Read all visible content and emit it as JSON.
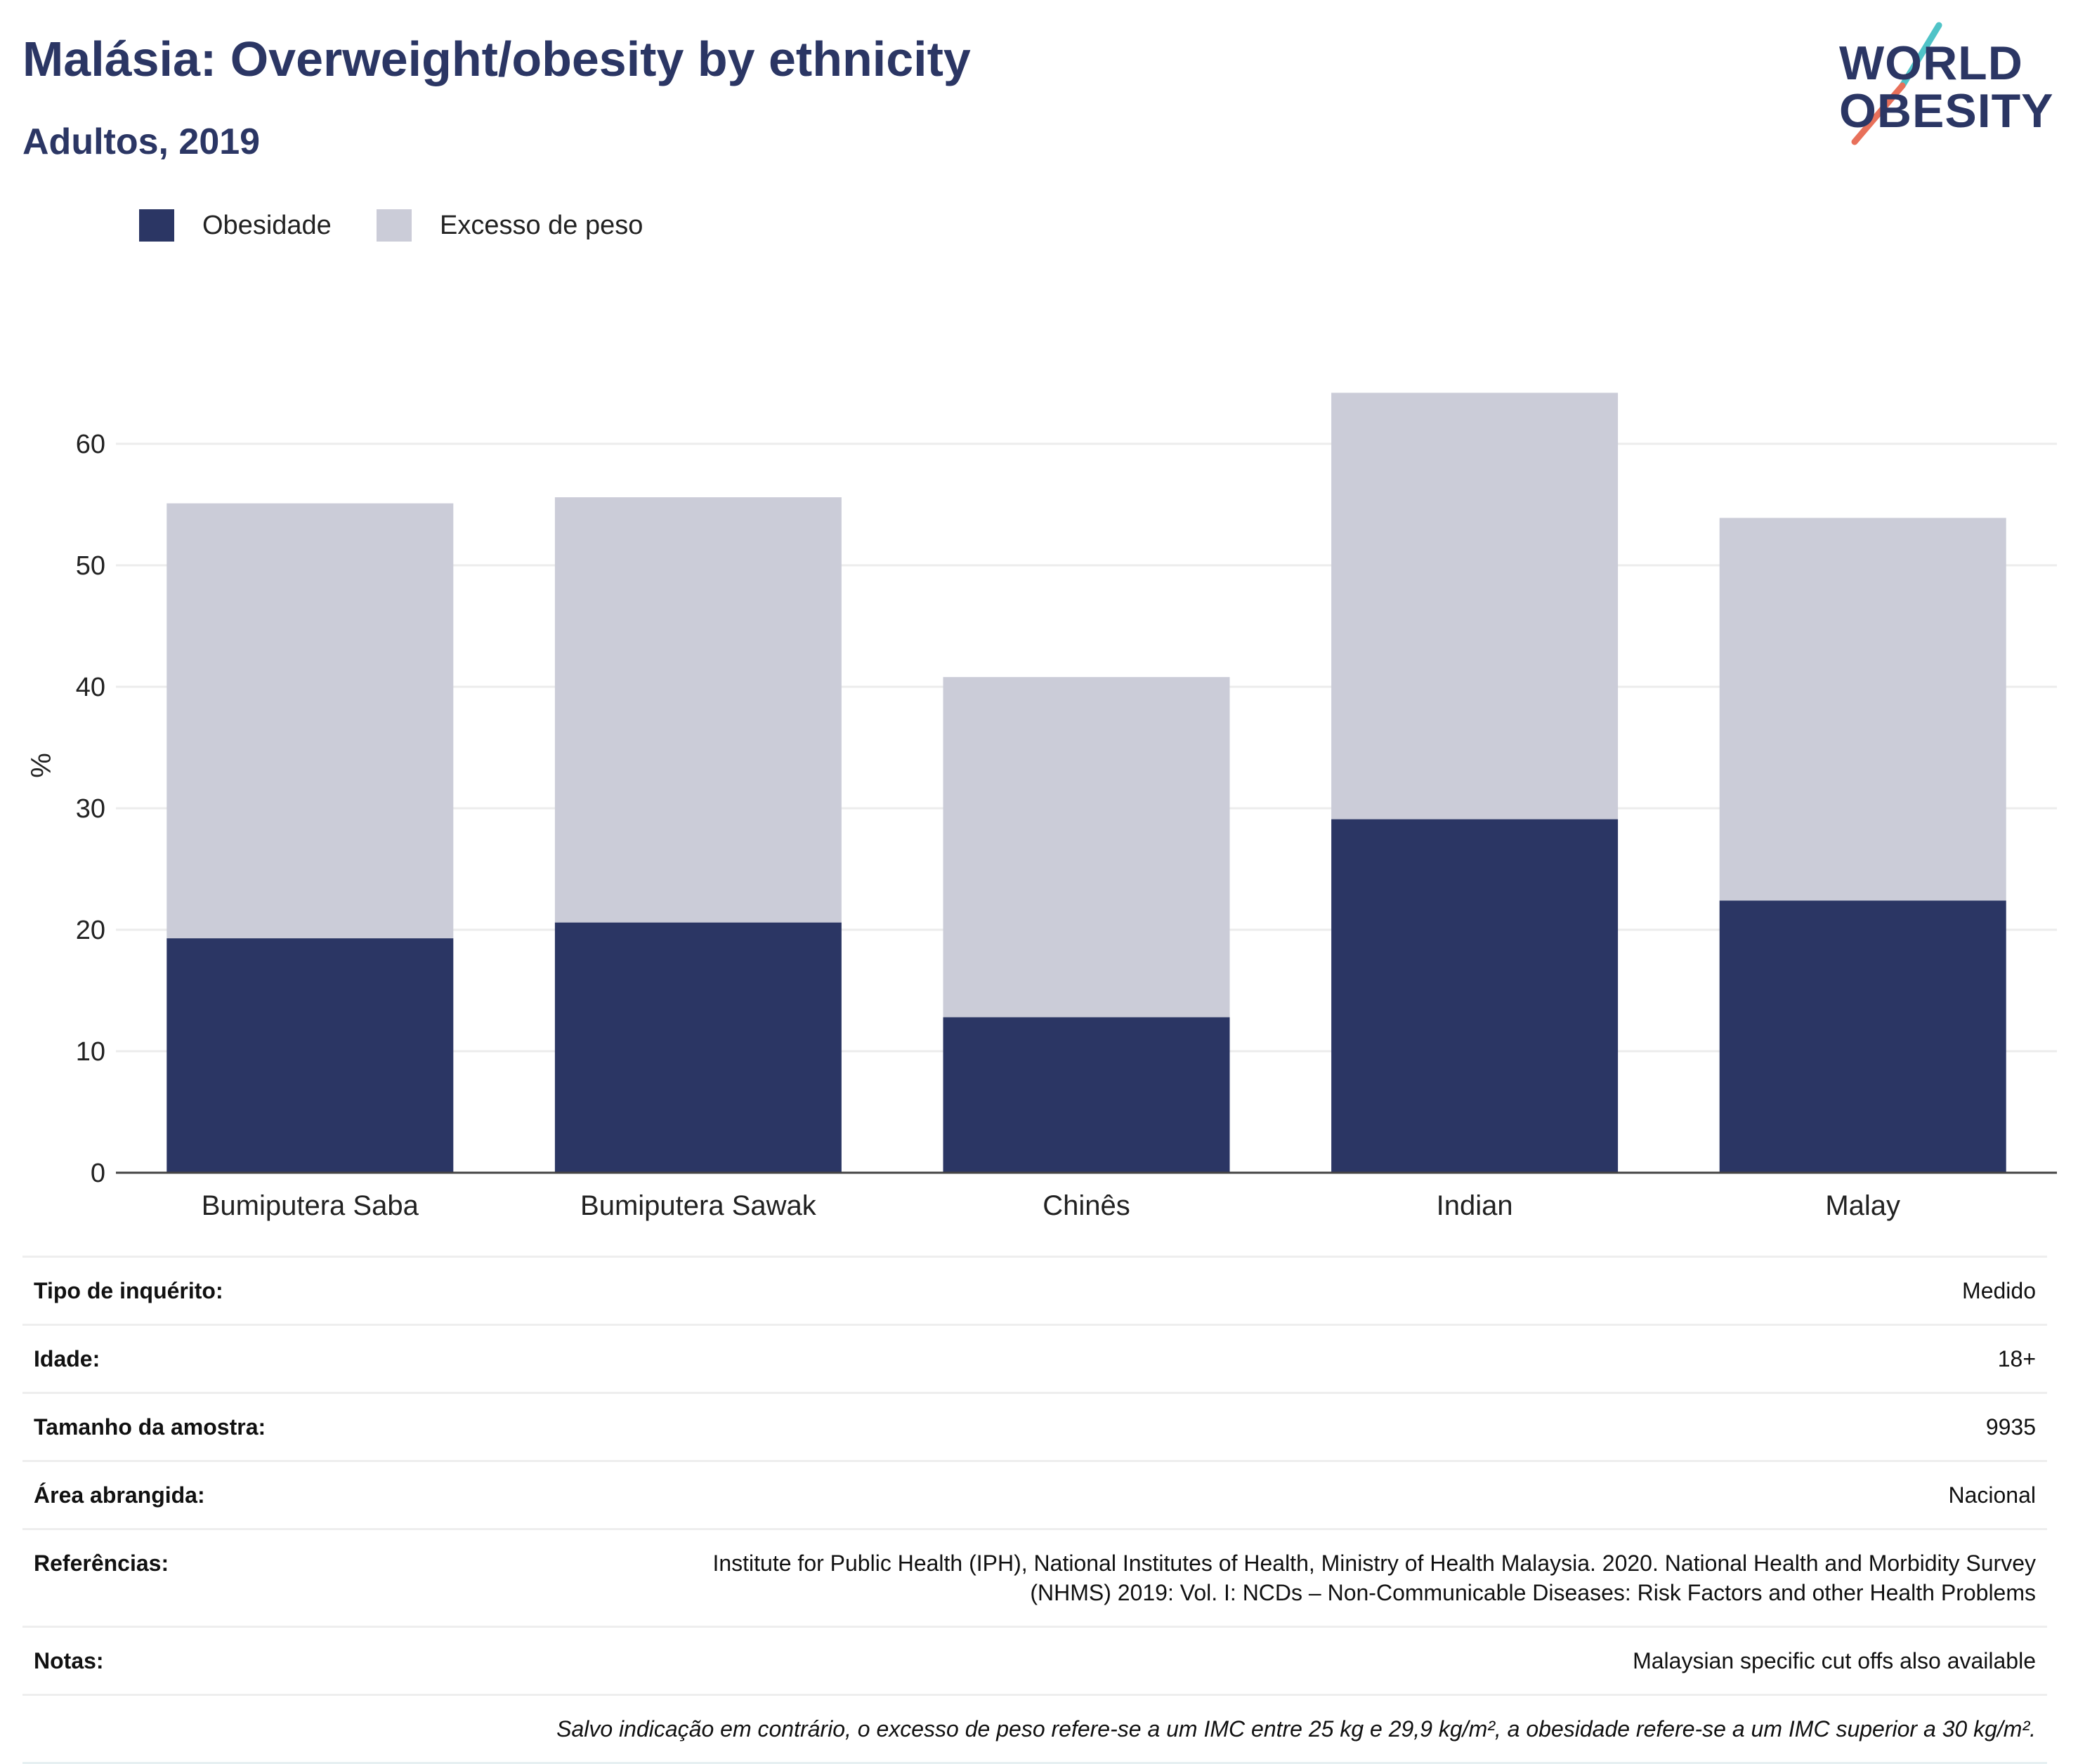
{
  "header": {
    "title": "Malásia: Overweight/obesity by ethnicity",
    "subtitle": "Adultos, 2019"
  },
  "logo": {
    "line1": "WORLD",
    "line2": "OBESITY",
    "colors": {
      "text": "#2b3664",
      "slash_top": "#4fc3c7",
      "slash_bottom": "#e8705a"
    }
  },
  "legend": [
    {
      "label": "Obesidade",
      "color": "#2b3664"
    },
    {
      "label": "Excesso de peso",
      "color": "#cbccd8"
    }
  ],
  "chart_data": {
    "type": "bar",
    "stacked": true,
    "categories": [
      "Bumiputera Saba",
      "Bumiputera Sawak",
      "Chinês",
      "Indian",
      "Malay"
    ],
    "series": [
      {
        "name": "Obesidade",
        "color": "#2b3664",
        "values": [
          19.3,
          20.6,
          12.8,
          29.1,
          22.4
        ]
      },
      {
        "name": "Excesso de peso",
        "color": "#cbccd8",
        "values": [
          35.8,
          35.0,
          28.0,
          35.1,
          31.5
        ]
      }
    ],
    "ylabel": "%",
    "ylim": [
      0,
      65
    ],
    "yticks": [
      "0",
      "10",
      "20",
      "30",
      "40",
      "50",
      "60"
    ],
    "grid": true,
    "legend_position": "top-left"
  },
  "info": {
    "rows": [
      {
        "label": "Tipo de inquérito:",
        "value": "Medido"
      },
      {
        "label": "Idade:",
        "value": "18+"
      },
      {
        "label": "Tamanho da amostra:",
        "value": "9935"
      },
      {
        "label": "Área abrangida:",
        "value": "Nacional"
      },
      {
        "label": "Referências:",
        "value_line1": "Institute for Public Health (IPH), National Institutes of Health, Ministry of Health Malaysia. 2020. National Health and Morbidity Survey",
        "value_line2": "(NHMS) 2019: Vol. I: NCDs – Non-Communicable Diseases: Risk Factors and other Health Problems"
      },
      {
        "label": "Notas:",
        "value": "Malaysian specific cut offs also available"
      }
    ],
    "footnote": "Salvo indicação em contrário, o excesso de peso refere-se a um IMC entre 25 kg e 29,9 kg/m², a obesidade refere-se a um IMC superior a 30 kg/m²."
  }
}
